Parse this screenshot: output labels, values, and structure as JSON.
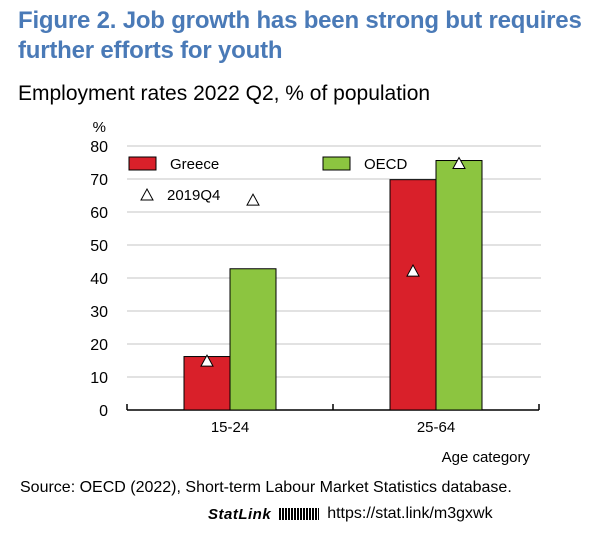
{
  "title": "Figure 2. Job growth has been strong but requires further efforts for youth",
  "subtitle": "Employment rates 2022 Q2, % of population",
  "source": "Source: OECD (2022), Short-term Labour Market Statistics database.",
  "statlink": {
    "brand": "StatLink",
    "url": "https://stat.link/m3gxwk"
  },
  "chart_data": {
    "type": "bar",
    "categories": [
      "15-24",
      "25-64"
    ],
    "series": [
      {
        "name": "Greece",
        "values": [
          16.2,
          69.8
        ],
        "color": "#d9202a"
      },
      {
        "name": "OECD",
        "values": [
          42.8,
          75.6
        ],
        "color": "#8cc540"
      }
    ],
    "markers": {
      "name": "2019Q4",
      "shape": "triangle",
      "values": [
        [
          14.8,
          63.6
        ],
        [
          42.1,
          74.7
        ]
      ]
    },
    "xlabel": "Age category",
    "ylabel": "%",
    "ylim": [
      0,
      80
    ],
    "yticks": [
      0,
      10,
      20,
      30,
      40,
      50,
      60,
      70,
      80
    ],
    "grid": true,
    "legend": "top-left"
  }
}
